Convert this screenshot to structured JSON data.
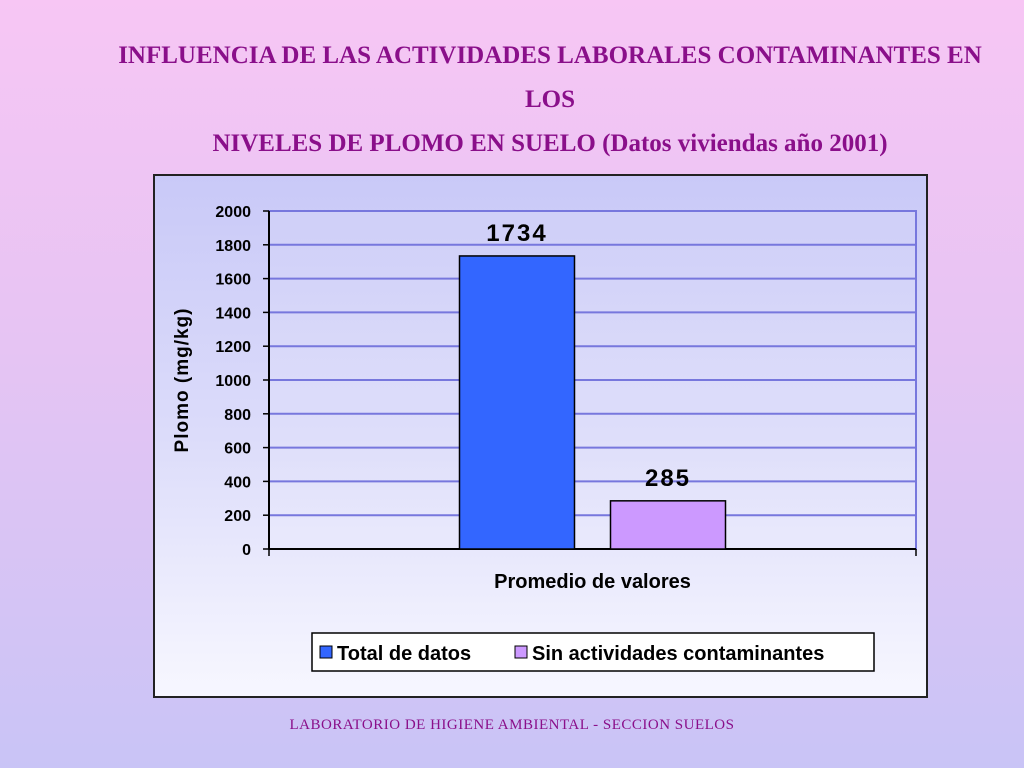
{
  "slide": {
    "title_line1": "INFLUENCIA DE LAS ACTIVIDADES LABORALES CONTAMINANTES EN LOS",
    "title_line2": "NIVELES DE PLOMO EN SUELO  (Datos viviendas año 2001)",
    "footer": "LABORATORIO DE HIGIENE AMBIENTAL - SECCION SUELOS"
  },
  "chart_data": {
    "type": "bar",
    "title": "",
    "categories": [
      "Promedio de valores"
    ],
    "xlabel": "Promedio de valores",
    "ylabel": "Plomo (mg/kg)",
    "ylim": [
      0,
      2000
    ],
    "yticks": [
      0,
      200,
      400,
      600,
      800,
      1000,
      1200,
      1400,
      1600,
      1800,
      2000
    ],
    "grid": true,
    "legend_position": "bottom",
    "series": [
      {
        "name": "Total de datos",
        "values": [
          1734
        ],
        "color": "#3366ff",
        "label": "1734"
      },
      {
        "name": "Sin actividades contaminantes",
        "values": [
          285
        ],
        "color": "#cc99ff",
        "label": "285"
      }
    ]
  }
}
